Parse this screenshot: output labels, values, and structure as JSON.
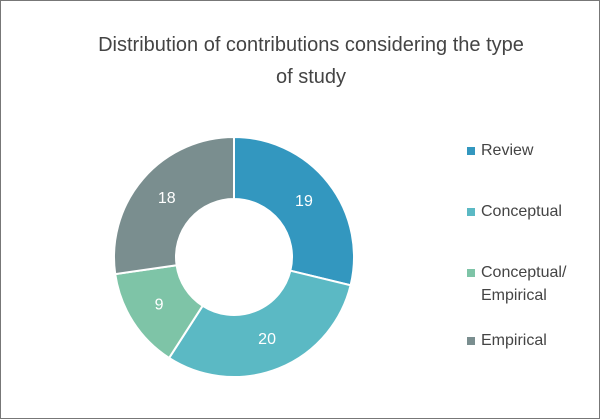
{
  "chart_data": {
    "type": "donut",
    "title": "Distribution of contributions considering the type of study",
    "categories": [
      "Review",
      "Conceptual",
      "Conceptual/ Empirical",
      "Empirical"
    ],
    "values": [
      19,
      20,
      9,
      18
    ],
    "colors": [
      "#3397bf",
      "#5bb9c4",
      "#7ec4a7",
      "#7a8e8f"
    ],
    "legend": "right"
  }
}
